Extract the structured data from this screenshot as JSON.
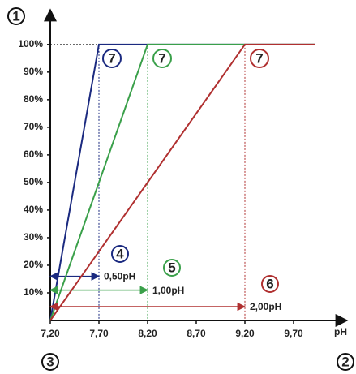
{
  "chart_data": {
    "type": "line",
    "x_label": "pH",
    "xlim": [
      7.2,
      10.2
    ],
    "ylim": [
      0,
      112
    ],
    "xticks": [
      {
        "value": 7.2,
        "label": "7,20"
      },
      {
        "value": 7.7,
        "label": "7,70"
      },
      {
        "value": 8.2,
        "label": "8,20"
      },
      {
        "value": 8.7,
        "label": "8,70"
      },
      {
        "value": 9.2,
        "label": "9,20"
      },
      {
        "value": 9.7,
        "label": "9,70"
      }
    ],
    "yticks": [
      {
        "value": 10,
        "label": "10%"
      },
      {
        "value": 20,
        "label": "20%"
      },
      {
        "value": 30,
        "label": "30%"
      },
      {
        "value": 40,
        "label": "40%"
      },
      {
        "value": 50,
        "label": "50%"
      },
      {
        "value": 60,
        "label": "60%"
      },
      {
        "value": 70,
        "label": "70%"
      },
      {
        "value": 80,
        "label": "80%"
      },
      {
        "value": 90,
        "label": "90%"
      },
      {
        "value": 100,
        "label": "100%"
      }
    ],
    "series": [
      {
        "color": "#1b2a80",
        "x": [
          7.2,
          7.7,
          9.92
        ],
        "values": [
          0,
          100,
          100
        ],
        "span_marker": "4",
        "span_label": "0,50pH",
        "plateau_marker": "7"
      },
      {
        "color": "#3aa04a",
        "x": [
          7.2,
          8.2,
          9.92
        ],
        "values": [
          0,
          100,
          100
        ],
        "span_marker": "5",
        "span_label": "1,00pH",
        "plateau_marker": "7"
      },
      {
        "color": "#b03030",
        "x": [
          7.2,
          9.2,
          9.92
        ],
        "values": [
          0,
          100,
          100
        ],
        "span_marker": "6",
        "span_label": "2,00pH",
        "plateau_marker": "7"
      }
    ],
    "axis_y_marker": "1",
    "axis_x_marker": "2",
    "origin_marker": "3"
  }
}
